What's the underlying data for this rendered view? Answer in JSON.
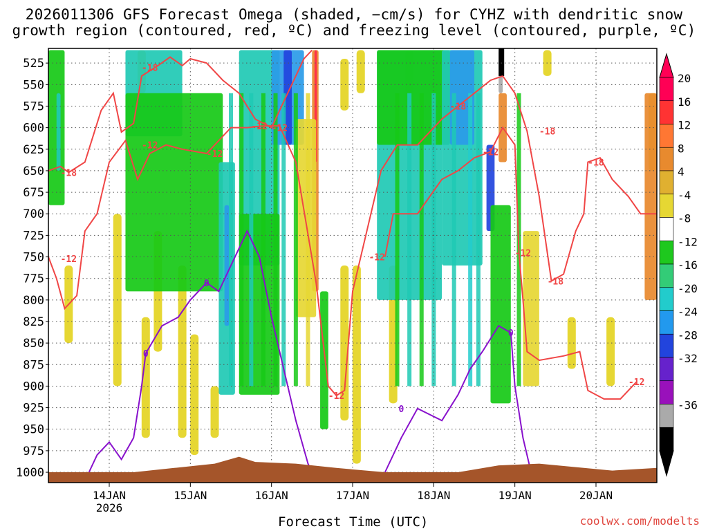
{
  "title_line1": "2026011306 GFS Forecast Omega (shaded, −cm/s) for CYHZ with dendritic snow",
  "title_line2": "growth region (contoured, red, ºC) and freezing level (contoured, purple, ºC)",
  "credit": "coolwx.com/modelts",
  "chart_data": {
    "type": "heatmap",
    "title": "2026011306 GFS Forecast Omega (shaded, −cm/s) for CYHZ with dendritic snow growth region (contoured, red, ºC) and freezing level (contoured, purple, ºC)",
    "xlabel": "Forecast Time (UTC)",
    "x_ticks": [
      "14JAN",
      "15JAN",
      "16JAN",
      "17JAN",
      "18JAN",
      "19JAN",
      "20JAN"
    ],
    "x_tick_year": "2026",
    "x_range_days": [
      13.25,
      20.75
    ],
    "y_ticks": [
      525,
      550,
      575,
      600,
      625,
      650,
      675,
      700,
      725,
      750,
      775,
      800,
      825,
      850,
      875,
      900,
      925,
      950,
      975,
      1000
    ],
    "y_range": [
      508,
      1012
    ],
    "grid": true,
    "colorbar": {
      "labels": [
        "20",
        "16",
        "12",
        "8",
        "4",
        "-4",
        "-8",
        "-12",
        "-16",
        "-20",
        "-24",
        "-28",
        "-32",
        "-36"
      ],
      "colors": [
        "#ff0055",
        "#ff3333",
        "#ff7733",
        "#e88a2e",
        "#e0b030",
        "#e6d733",
        "#ffffff",
        "#1ec81e",
        "#33cc77",
        "#22cccc",
        "#2299ee",
        "#2244dd",
        "#6622cc",
        "#9911bb",
        "#aaaaaa",
        "#000000"
      ]
    },
    "omega_regions": [
      {
        "x": [
          13.25,
          13.45
        ],
        "p": [
          510,
          690
        ],
        "cls": "green"
      },
      {
        "x": [
          13.35,
          13.4
        ],
        "p": [
          560,
          650
        ],
        "cls": "teal"
      },
      {
        "x": [
          14.2,
          14.9
        ],
        "p": [
          510,
          610
        ],
        "cls": "teal"
      },
      {
        "x": [
          14.2,
          15.4
        ],
        "p": [
          560,
          790
        ],
        "cls": "green"
      },
      {
        "x": [
          15.35,
          15.55
        ],
        "p": [
          640,
          910
        ],
        "cls": "teal"
      },
      {
        "x": [
          15.42,
          15.48
        ],
        "p": [
          690,
          830
        ],
        "cls": "blue"
      },
      {
        "x": [
          15.6,
          16.1
        ],
        "p": [
          510,
          760
        ],
        "cls": "teal"
      },
      {
        "x": [
          15.6,
          16.1
        ],
        "p": [
          700,
          910
        ],
        "cls": "green"
      },
      {
        "x": [
          16.0,
          16.4
        ],
        "p": [
          510,
          620
        ],
        "cls": "blue"
      },
      {
        "x": [
          16.15,
          16.25
        ],
        "p": [
          510,
          620
        ],
        "cls": "navy"
      },
      {
        "x": [
          16.5,
          16.58
        ],
        "p": [
          510,
          790
        ],
        "cls": "orange"
      },
      {
        "x": [
          16.53,
          16.56
        ],
        "p": [
          510,
          640
        ],
        "cls": "red"
      },
      {
        "x": [
          16.3,
          16.55
        ],
        "p": [
          590,
          820
        ],
        "cls": "yellow"
      },
      {
        "x": [
          16.6,
          16.7
        ],
        "p": [
          790,
          950
        ],
        "cls": "green"
      },
      {
        "x": [
          17.3,
          18.1
        ],
        "p": [
          510,
          800
        ],
        "cls": "teal"
      },
      {
        "x": [
          17.3,
          18.2
        ],
        "p": [
          510,
          620
        ],
        "cls": "green"
      },
      {
        "x": [
          18.1,
          18.6
        ],
        "p": [
          510,
          760
        ],
        "cls": "teal"
      },
      {
        "x": [
          18.2,
          18.5
        ],
        "p": [
          510,
          620
        ],
        "cls": "blue"
      },
      {
        "x": [
          18.65,
          18.75
        ],
        "p": [
          620,
          720
        ],
        "cls": "navy"
      },
      {
        "x": [
          18.7,
          18.95
        ],
        "p": [
          690,
          920
        ],
        "cls": "green"
      },
      {
        "x": [
          18.8,
          18.85
        ],
        "p": [
          510,
          560
        ],
        "cls": "gray"
      },
      {
        "x": [
          18.8,
          18.9
        ],
        "p": [
          560,
          640
        ],
        "cls": "orange"
      },
      {
        "x": [
          19.1,
          19.3
        ],
        "p": [
          720,
          900
        ],
        "cls": "yellow"
      },
      {
        "x": [
          20.6,
          20.75
        ],
        "p": [
          560,
          800
        ],
        "cls": "orange"
      }
    ],
    "series": [
      {
        "name": "-12",
        "color": "#f04646",
        "labels": [
          [
            13.5,
            752,
            "-12"
          ],
          [
            14.5,
            620,
            "-12"
          ],
          [
            15.3,
            630,
            "-12"
          ],
          [
            15.85,
            598,
            "-12"
          ],
          [
            17.3,
            750,
            "-12"
          ],
          [
            18.7,
            628,
            "-12"
          ],
          [
            19.1,
            745,
            "-12"
          ],
          [
            20.5,
            895,
            "-12"
          ]
        ]
      },
      {
        "name": "-18",
        "color": "#f04646",
        "labels": [
          [
            13.5,
            652,
            "-18"
          ],
          [
            14.5,
            530,
            "-18"
          ],
          [
            16.1,
            600,
            "-12"
          ],
          [
            18.3,
            575,
            "-18"
          ],
          [
            19.4,
            604,
            "-18"
          ],
          [
            19.5,
            778,
            "-18"
          ],
          [
            20.0,
            640,
            "-18"
          ],
          [
            16.8,
            911,
            "-12"
          ]
        ]
      },
      {
        "name": "0",
        "color": "#8811cc",
        "labels": [
          [
            14.45,
            862,
            "0"
          ],
          [
            15.2,
            780,
            "0"
          ],
          [
            17.6,
            926,
            "0"
          ],
          [
            18.95,
            838,
            "0"
          ]
        ]
      }
    ]
  }
}
